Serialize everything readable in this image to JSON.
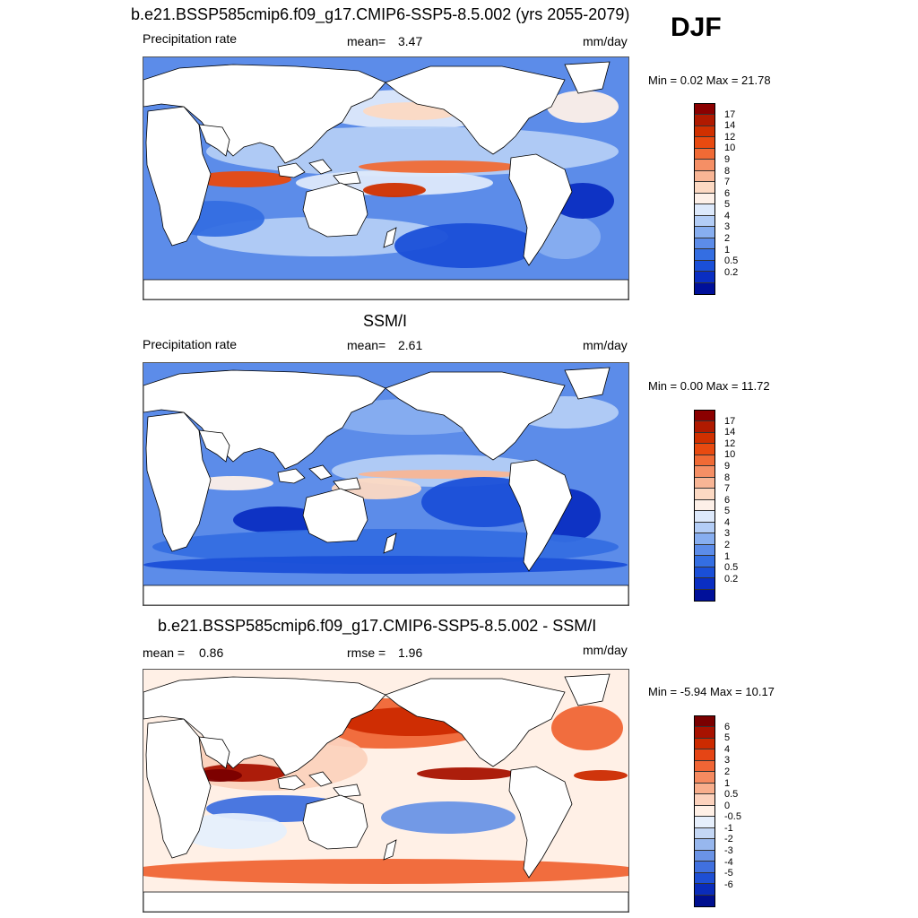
{
  "season": "DJF",
  "panels": [
    {
      "id": "model",
      "title": "b.e21.BSSP585cmip6.f09_g17.CMIP6-SSP5-8.5.002 (yrs 2055-2079)",
      "left_label": "Precipitation rate",
      "center_label": "mean=",
      "center_value": "3.47",
      "right_label": "mm/day",
      "minmax": "Min =   0.02 Max =  21.78",
      "scale": "precip"
    },
    {
      "id": "obs",
      "title": "SSM/I",
      "left_label": "Precipitation rate",
      "center_label": "mean=",
      "center_value": "2.61",
      "right_label": "mm/day",
      "minmax": "Min =   0.00 Max =  11.72",
      "scale": "precip"
    },
    {
      "id": "diff",
      "title": "b.e21.BSSP585cmip6.f09_g17.CMIP6-SSP5-8.5.002 - SSM/I",
      "left_label": "mean =",
      "left_value": "0.86",
      "center_label": "rmse =",
      "center_value": "1.96",
      "right_label": "mm/day",
      "minmax": "Min =  -5.94 Max =  10.17",
      "scale": "diff"
    }
  ],
  "colorbars": {
    "precip": {
      "labels": [
        "17",
        "14",
        "12",
        "10",
        "9",
        "8",
        "7",
        "6",
        "5",
        "4",
        "3",
        "2",
        "1",
        "0.5",
        "0.2"
      ],
      "colors": [
        "#8b0000",
        "#b01a00",
        "#d03000",
        "#e84a10",
        "#f06a35",
        "#f58f65",
        "#f8b595",
        "#fcd9c3",
        "#fdf0e8",
        "#dde9fb",
        "#b3cdf6",
        "#87aef0",
        "#5c8ce9",
        "#346ee2",
        "#1a4fd8",
        "#0a2ec2",
        "#00109a"
      ]
    },
    "diff": {
      "labels": [
        "6",
        "5",
        "4",
        "3",
        "2",
        "1",
        "0.5",
        "0",
        "-0.5",
        "-1",
        "-2",
        "-3",
        "-4",
        "-5",
        "-6"
      ],
      "colors": [
        "#7a0000",
        "#a81200",
        "#cc2a00",
        "#e54515",
        "#f06535",
        "#f58a60",
        "#f8ae8c",
        "#fcd2bd",
        "#fff0e6",
        "#e6effc",
        "#c4d7f5",
        "#97b7ee",
        "#6a93e6",
        "#4070df",
        "#1e4fd4",
        "#0a2cba",
        "#000f8f"
      ]
    }
  }
}
